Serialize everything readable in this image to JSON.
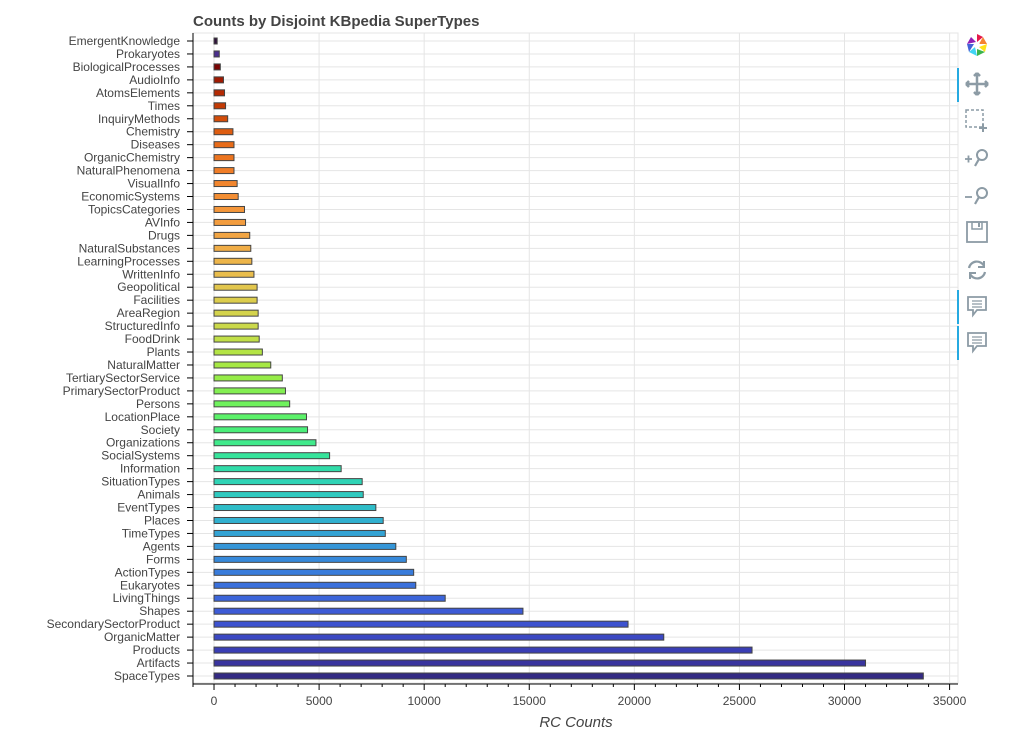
{
  "chart_data": {
    "type": "bar",
    "orientation": "horizontal",
    "title": "Counts by Disjoint KBpedia SuperTypes",
    "xlabel": "RC Counts",
    "ylabel": "",
    "xlim": [
      -1000,
      35400
    ],
    "xticks": [
      0,
      5000,
      10000,
      15000,
      20000,
      25000,
      30000,
      35000
    ],
    "xtick_labels": [
      "0",
      "5000",
      "10000",
      "15000",
      "20000",
      "25000",
      "30000",
      "35000"
    ],
    "grid": true,
    "legend": "none",
    "categories": [
      "EmergentKnowledge",
      "Prokaryotes",
      "BiologicalProcesses",
      "AudioInfo",
      "AtomsElements",
      "Times",
      "InquiryMethods",
      "Chemistry",
      "Diseases",
      "OrganicChemistry",
      "NaturalPhenomena",
      "VisualInfo",
      "EconomicSystems",
      "TopicsCategories",
      "AVInfo",
      "Drugs",
      "NaturalSubstances",
      "LearningProcesses",
      "WrittenInfo",
      "Geopolitical",
      "Facilities",
      "AreaRegion",
      "StructuredInfo",
      "FoodDrink",
      "Plants",
      "NaturalMatter",
      "TertiarySectorService",
      "PrimarySectorProduct",
      "Persons",
      "LocationPlace",
      "Society",
      "Organizations",
      "SocialSystems",
      "Information",
      "SituationTypes",
      "Animals",
      "EventTypes",
      "Places",
      "TimeTypes",
      "Agents",
      "Forms",
      "ActionTypes",
      "Eukaryotes",
      "LivingThings",
      "Shapes",
      "SecondarySectorProduct",
      "OrganicMatter",
      "Products",
      "Artifacts",
      "SpaceTypes"
    ],
    "values": [
      150,
      250,
      300,
      450,
      500,
      550,
      650,
      900,
      950,
      950,
      950,
      1100,
      1150,
      1450,
      1500,
      1700,
      1750,
      1800,
      1900,
      2050,
      2050,
      2100,
      2100,
      2150,
      2300,
      2700,
      3250,
      3400,
      3600,
      4400,
      4450,
      4850,
      5500,
      6050,
      7050,
      7100,
      7700,
      8050,
      8150,
      8650,
      9150,
      9500,
      9600,
      11000,
      14700,
      19700,
      21400,
      25600,
      31000,
      33750
    ],
    "colors": [
      "#30123b",
      "#4b2f8e",
      "#7a0403",
      "#a01a02",
      "#b42a03",
      "#c33b05",
      "#d24d0a",
      "#de5d11",
      "#e86c19",
      "#ec7520",
      "#f07d27",
      "#f2862e",
      "#f38e34",
      "#f4963a",
      "#f39d3f",
      "#f2a543",
      "#f0ad47",
      "#edb54a",
      "#e9bd4c",
      "#e2c64d",
      "#dccd4d",
      "#d4d34c",
      "#cbd94a",
      "#c1df48",
      "#b4e445",
      "#a6e843",
      "#96ec48",
      "#83ef52",
      "#6ff25d",
      "#5cf26a",
      "#4bee7a",
      "#40ea8b",
      "#36e49b",
      "#31dca9",
      "#2fd3b5",
      "#2ec9bf",
      "#2fbdc8",
      "#31b0cf",
      "#33a3d4",
      "#3596d8",
      "#3789da",
      "#397cdb",
      "#3a70db",
      "#3c65da",
      "#3d5bd6",
      "#3d52cf",
      "#3b48c3",
      "#3a3eb4",
      "#39349e",
      "#342a83"
    ]
  },
  "toolbar": {
    "logo": "bokeh-logo-icon",
    "tools": [
      "pan-icon",
      "box-zoom-icon",
      "zoom-in-icon",
      "zoom-out-icon",
      "save-icon",
      "reset-icon",
      "hover-icon",
      "hover-icon"
    ]
  }
}
